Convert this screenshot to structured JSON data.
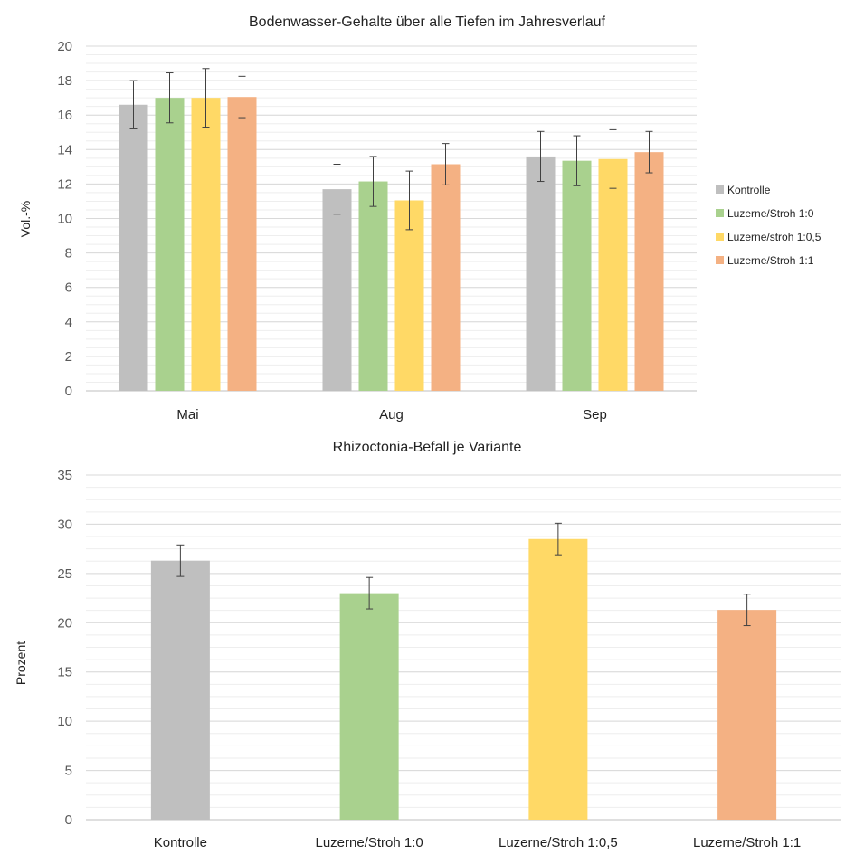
{
  "chart_data": [
    {
      "type": "bar",
      "title": "Bodenwasser-Gehalte  über alle Tiefen im Jahresverlauf",
      "xlabel": "",
      "ylabel": "Vol.-%",
      "ylim": [
        0,
        20
      ],
      "ytick_step": 2,
      "grid": true,
      "legend_position": "right",
      "categories": [
        "Mai",
        "Aug",
        "Sep"
      ],
      "series": [
        {
          "name": "Kontrolle",
          "color": "#bfbfbf",
          "values": [
            16.6,
            11.7,
            13.6
          ],
          "errors": [
            1.4,
            1.45,
            1.45
          ]
        },
        {
          "name": "Luzerne/Stroh 1:0",
          "color": "#a9d18e",
          "values": [
            17.0,
            12.15,
            13.35
          ],
          "errors": [
            1.45,
            1.45,
            1.45
          ]
        },
        {
          "name": "Luzerne/stroh 1:0,5",
          "color": "#ffd966",
          "values": [
            17.0,
            11.05,
            13.45
          ],
          "errors": [
            1.7,
            1.7,
            1.7
          ]
        },
        {
          "name": "Luzerne/Stroh 1:1",
          "color": "#f4b183",
          "values": [
            17.05,
            13.15,
            13.85
          ],
          "errors": [
            1.2,
            1.2,
            1.2
          ]
        }
      ]
    },
    {
      "type": "bar",
      "title": "Rhizoctonia-Befall  je Variante",
      "xlabel": "",
      "ylabel": "Prozent",
      "ylim": [
        0,
        35
      ],
      "ytick_step": 5,
      "grid": true,
      "categories": [
        "Kontrolle",
        "Luzerne/Stroh 1:0",
        "Luzerne/Stroh 1:0,5",
        "Luzerne/Stroh 1:1"
      ],
      "values": [
        26.3,
        23.0,
        28.5,
        21.3
      ],
      "errors": [
        1.6,
        1.6,
        1.6,
        1.6
      ],
      "colors": [
        "#bfbfbf",
        "#a9d18e",
        "#ffd966",
        "#f4b183"
      ]
    }
  ]
}
